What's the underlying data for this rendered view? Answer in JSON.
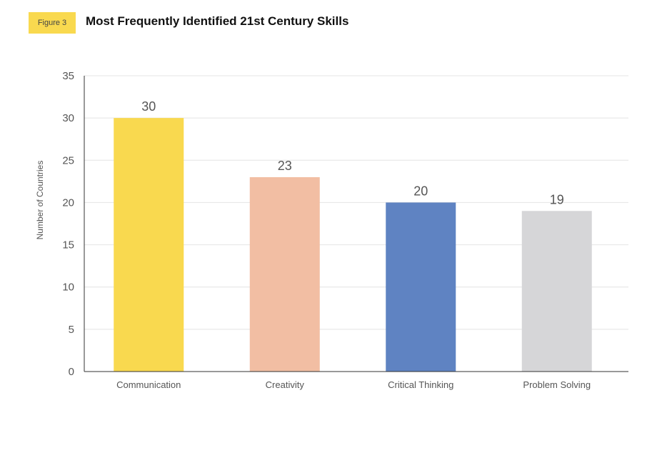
{
  "figure_label": "Figure 3",
  "chart_data": {
    "type": "bar",
    "title": "Most Frequently Identified 21st Century Skills",
    "xlabel": "",
    "ylabel": "Number of Countries",
    "ylim": [
      0,
      35
    ],
    "yticks": [
      0,
      5,
      10,
      15,
      20,
      25,
      30,
      35
    ],
    "grid": true,
    "categories": [
      "Communication",
      "Creativity",
      "Critical Thinking",
      "Problem Solving"
    ],
    "values": [
      30,
      23,
      20,
      19
    ],
    "colors": [
      "#f9d94f",
      "#f2bea3",
      "#5f83c2",
      "#d6d6d8"
    ]
  }
}
